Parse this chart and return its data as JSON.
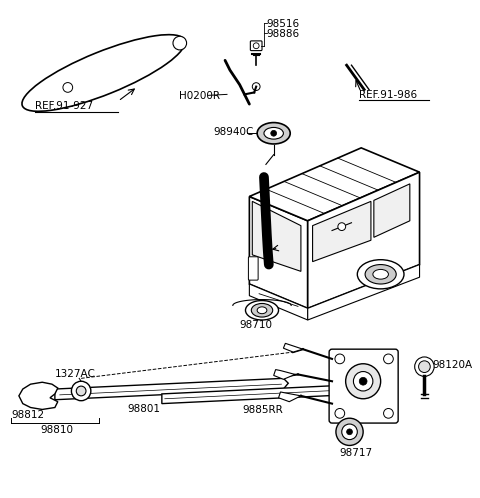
{
  "background_color": "#ffffff",
  "line_color": "#000000",
  "figsize": [
    4.8,
    4.98
  ],
  "dpi": 100,
  "labels": {
    "ref91927": "REF.91-927",
    "ref91986": "REF.91-986",
    "p98516": "98516",
    "p98886": "98886",
    "pH0200R": "H0200R",
    "p98940C": "98940C",
    "p98710": "98710",
    "p1327AC": "1327AC",
    "p98812": "98812",
    "p98801": "98801",
    "p98810": "98810",
    "p9885RR": "9885RR",
    "p98717": "98717",
    "p98120A": "98120A"
  }
}
